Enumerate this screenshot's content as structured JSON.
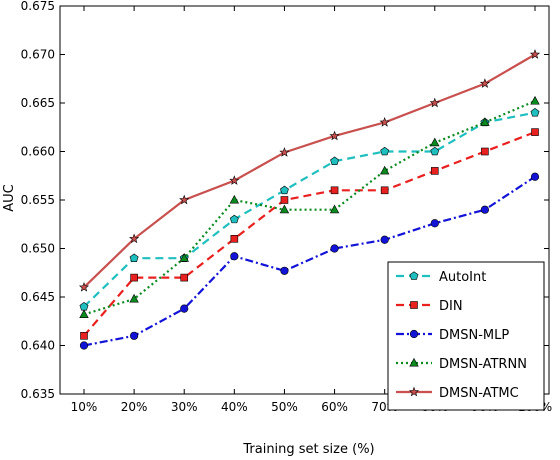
{
  "chart_data": {
    "type": "line",
    "xlabel": "Training set size (%)",
    "ylabel": "AUC",
    "categories": [
      "10%",
      "20%",
      "30%",
      "40%",
      "50%",
      "60%",
      "70%",
      "80%",
      "90%",
      "100%"
    ],
    "ylim": [
      0.635,
      0.675
    ],
    "yticks": [
      "0.635",
      "0.640",
      "0.645",
      "0.650",
      "0.655",
      "0.660",
      "0.665",
      "0.670",
      "0.675"
    ],
    "grid": false,
    "legend_position": "bottom-right",
    "series": [
      {
        "name": "AutoInt",
        "color": "#1fbfbf",
        "dash": "8,5",
        "marker": "pentagon",
        "values": [
          0.644,
          0.649,
          0.649,
          0.653,
          0.656,
          0.659,
          0.66,
          0.66,
          0.663,
          0.664
        ]
      },
      {
        "name": "DIN",
        "color": "#e8201f",
        "dash": "8,5",
        "marker": "square",
        "values": [
          0.641,
          0.647,
          0.647,
          0.651,
          0.655,
          0.656,
          0.656,
          0.658,
          0.66,
          0.662
        ]
      },
      {
        "name": "DMSN-MLP",
        "color": "#1313d8",
        "dash": "8,3,2,3",
        "marker": "circle",
        "values": [
          0.64,
          0.641,
          0.6438,
          0.6492,
          0.6477,
          0.65,
          0.6509,
          0.6526,
          0.654,
          0.6574
        ]
      },
      {
        "name": "DMSN-ATRNN",
        "color": "#0a8a1f",
        "dash": "2,3",
        "marker": "triangle",
        "values": [
          0.6432,
          0.6448,
          0.649,
          0.655,
          0.654,
          0.654,
          0.658,
          0.6609,
          0.663,
          0.6652
        ]
      },
      {
        "name": "DMSN-ATMC",
        "color": "#c8504e",
        "dash": "",
        "marker": "star",
        "values": [
          0.646,
          0.651,
          0.655,
          0.657,
          0.6599,
          0.6616,
          0.663,
          0.665,
          0.667,
          0.67
        ]
      }
    ]
  }
}
